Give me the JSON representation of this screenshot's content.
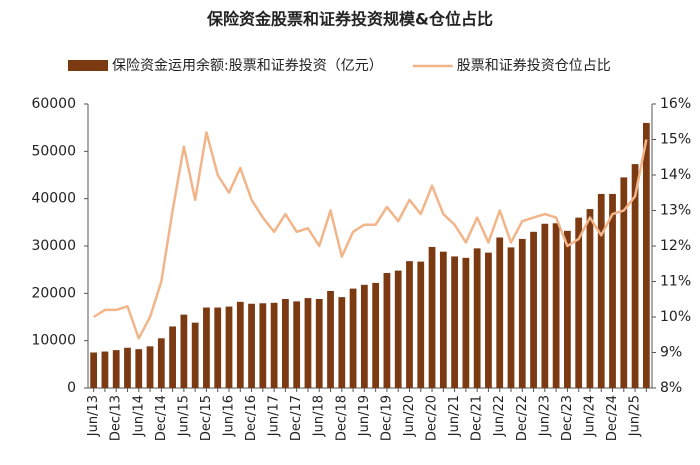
{
  "chart_data": {
    "type": "bar",
    "title": "保险资金股票和证券投资规模&仓位占比",
    "categories": [
      "Jun/13",
      null,
      "Dec/13",
      null,
      "Jun/14",
      null,
      "Dec/14",
      null,
      "Jun/15",
      null,
      "Dec/15",
      null,
      "Jun/16",
      null,
      "Dec/16",
      null,
      "Jun/17",
      null,
      "Dec/17",
      null,
      "Jun/18",
      null,
      "Dec/18",
      null,
      "Jun/19",
      null,
      "Dec/19",
      null,
      "Jun/20",
      null,
      "Dec/20",
      null,
      "Jun/21",
      null,
      "Dec/21",
      null,
      "Jun/22",
      null,
      "Dec/22",
      null,
      "Jun/23",
      null,
      "Dec/23",
      null,
      "Jun/24",
      null,
      "Dec/24",
      null,
      "Jun/25",
      null
    ],
    "series": [
      {
        "name": "保险资金运用余额:股票和证券投资（亿元）",
        "type": "bar",
        "color": "#7b3a12",
        "values": [
          7500,
          7700,
          8000,
          8500,
          8200,
          8800,
          10500,
          13000,
          15500,
          13800,
          17000,
          17000,
          17200,
          18200,
          17800,
          17900,
          18000,
          18800,
          18300,
          19000,
          18800,
          20500,
          19200,
          21000,
          21800,
          22200,
          24300,
          24800,
          26800,
          26700,
          29800,
          28800,
          27800,
          27500,
          29500,
          28600,
          31800,
          29700,
          31500,
          33000,
          34700,
          34800,
          33200,
          36000,
          37800,
          41000,
          41000,
          44500,
          47300,
          56000
        ]
      },
      {
        "name": "股票和证券投资仓位占比",
        "type": "line",
        "axis": "y2",
        "color": "#f2b58a",
        "values": [
          10.0,
          10.2,
          10.2,
          10.3,
          9.4,
          10.0,
          11.0,
          13.0,
          14.8,
          13.3,
          15.2,
          14.0,
          13.5,
          14.2,
          13.3,
          12.8,
          12.4,
          12.9,
          12.4,
          12.5,
          12.0,
          13.0,
          11.7,
          12.4,
          12.6,
          12.6,
          13.1,
          12.7,
          13.3,
          12.9,
          13.7,
          12.9,
          12.6,
          12.1,
          12.8,
          12.1,
          13.0,
          12.1,
          12.7,
          12.8,
          12.9,
          12.8,
          12.0,
          12.2,
          12.8,
          12.3,
          12.9,
          13.0,
          13.4,
          15.0
        ]
      }
    ],
    "ylim": [
      0,
      60000
    ],
    "yticks": [
      0,
      10000,
      20000,
      30000,
      40000,
      50000,
      60000
    ],
    "y2lim": [
      8,
      16
    ],
    "y2ticks": [
      {
        "value": 8,
        "label": "8%"
      },
      {
        "value": 9,
        "label": "9%"
      },
      {
        "value": 10,
        "label": "10%"
      },
      {
        "value": 11,
        "label": "11%"
      },
      {
        "value": 12,
        "label": "12%"
      },
      {
        "value": 13,
        "label": "13%"
      },
      {
        "value": 14,
        "label": "14%"
      },
      {
        "value": 15,
        "label": "15%"
      },
      {
        "value": 16,
        "label": "16%"
      }
    ],
    "legend": "top"
  }
}
